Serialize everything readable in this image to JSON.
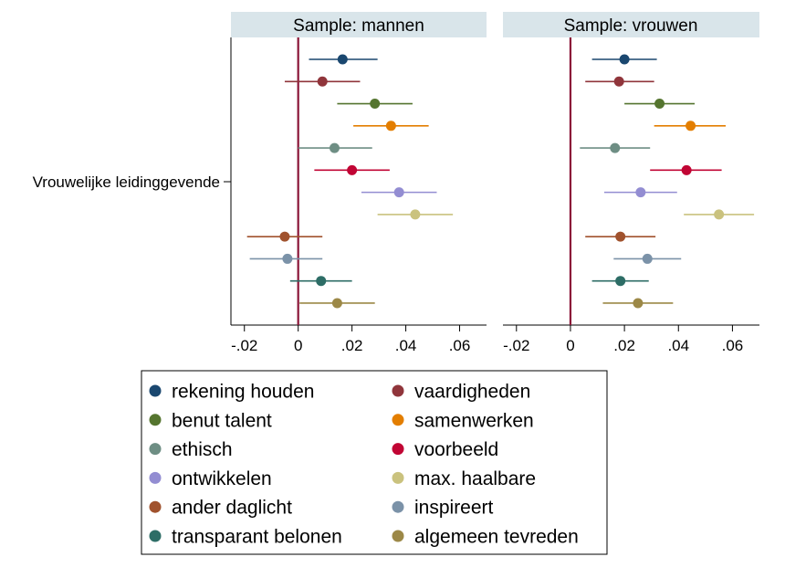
{
  "chart_data": {
    "type": "scatter",
    "subtype": "coefficient-plot",
    "y_category": "Vrouwelijke leidinggevende",
    "xlim": [
      -0.025,
      0.07
    ],
    "xticks": [
      -0.02,
      0,
      0.02,
      0.04,
      0.06
    ],
    "xtick_labels": [
      "-.02",
      "0",
      ".02",
      ".04",
      ".06"
    ],
    "reference_line_x": 0,
    "reference_line_color": "#8b1538",
    "grid": false,
    "legend_position": "bottom",
    "legend_columns": 2,
    "series": [
      {
        "name": "rekening houden",
        "color": "#1a476f"
      },
      {
        "name": "vaardigheden",
        "color": "#90353b"
      },
      {
        "name": "benut talent",
        "color": "#55752f"
      },
      {
        "name": "samenwerken",
        "color": "#e37e00"
      },
      {
        "name": "ethisch",
        "color": "#6e8e84"
      },
      {
        "name": "voorbeeld",
        "color": "#c10534"
      },
      {
        "name": "ontwikkelen",
        "color": "#938dd2"
      },
      {
        "name": "max. haalbare",
        "color": "#cac27e"
      },
      {
        "name": "ander daglicht",
        "color": "#a0522d"
      },
      {
        "name": "inspireert",
        "color": "#7b92a8"
      },
      {
        "name": "transparant belonen",
        "color": "#2d6d66"
      },
      {
        "name": "algemeen tevreden",
        "color": "#9c8847"
      }
    ],
    "panels": [
      {
        "title": "Sample: mannen",
        "estimates": [
          {
            "series": "rekening houden",
            "value": 0.0165,
            "ci": [
              0.004,
              0.0295
            ]
          },
          {
            "series": "vaardigheden",
            "value": 0.009,
            "ci": [
              -0.005,
              0.023
            ]
          },
          {
            "series": "benut talent",
            "value": 0.0285,
            "ci": [
              0.0145,
              0.0425
            ]
          },
          {
            "series": "samenwerken",
            "value": 0.0345,
            "ci": [
              0.0205,
              0.0485
            ]
          },
          {
            "series": "ethisch",
            "value": 0.0135,
            "ci": [
              0.0,
              0.0275
            ]
          },
          {
            "series": "voorbeeld",
            "value": 0.02,
            "ci": [
              0.006,
              0.034
            ]
          },
          {
            "series": "ontwikkelen",
            "value": 0.0375,
            "ci": [
              0.0235,
              0.0515
            ]
          },
          {
            "series": "max. haalbare",
            "value": 0.0435,
            "ci": [
              0.0295,
              0.0575
            ]
          },
          {
            "series": "ander daglicht",
            "value": -0.005,
            "ci": [
              -0.019,
              0.009
            ]
          },
          {
            "series": "inspireert",
            "value": -0.004,
            "ci": [
              -0.018,
              0.009
            ]
          },
          {
            "series": "transparant belonen",
            "value": 0.0085,
            "ci": [
              -0.003,
              0.02
            ]
          },
          {
            "series": "algemeen tevreden",
            "value": 0.0145,
            "ci": [
              0.0005,
              0.0285
            ]
          }
        ]
      },
      {
        "title": "Sample: vrouwen",
        "estimates": [
          {
            "series": "rekening houden",
            "value": 0.02,
            "ci": [
              0.008,
              0.032
            ]
          },
          {
            "series": "vaardigheden",
            "value": 0.018,
            "ci": [
              0.0055,
              0.031
            ]
          },
          {
            "series": "benut talent",
            "value": 0.033,
            "ci": [
              0.02,
              0.046
            ]
          },
          {
            "series": "samenwerken",
            "value": 0.0445,
            "ci": [
              0.031,
              0.0575
            ]
          },
          {
            "series": "ethisch",
            "value": 0.0165,
            "ci": [
              0.0035,
              0.0295
            ]
          },
          {
            "series": "voorbeeld",
            "value": 0.043,
            "ci": [
              0.0295,
              0.056
            ]
          },
          {
            "series": "ontwikkelen",
            "value": 0.026,
            "ci": [
              0.0125,
              0.0395
            ]
          },
          {
            "series": "max. haalbare",
            "value": 0.055,
            "ci": [
              0.042,
              0.068
            ]
          },
          {
            "series": "ander daglicht",
            "value": 0.0185,
            "ci": [
              0.0055,
              0.0315
            ]
          },
          {
            "series": "inspireert",
            "value": 0.0285,
            "ci": [
              0.016,
              0.041
            ]
          },
          {
            "series": "transparant belonen",
            "value": 0.0185,
            "ci": [
              0.008,
              0.029
            ]
          },
          {
            "series": "algemeen tevreden",
            "value": 0.025,
            "ci": [
              0.012,
              0.038
            ]
          }
        ]
      }
    ]
  }
}
